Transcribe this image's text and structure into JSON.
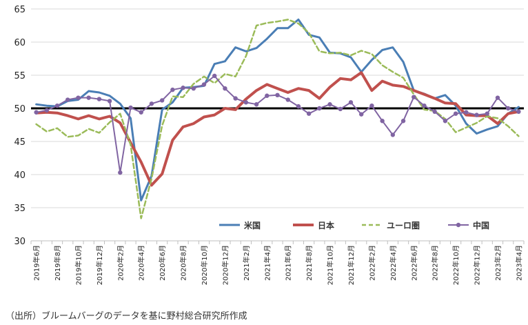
{
  "chart_data": {
    "type": "line",
    "title": "",
    "xlabel": "",
    "ylabel": "",
    "ylim": [
      30,
      65
    ],
    "yticks": [
      30,
      35,
      40,
      45,
      50,
      55,
      60,
      65
    ],
    "reference_line": 50,
    "grid": "horizontal",
    "legend_position": "bottom-inside",
    "x": [
      "2019年6月",
      "2019年7月",
      "2019年8月",
      "2019年9月",
      "2019年10月",
      "2019年11月",
      "2019年12月",
      "2020年1月",
      "2020年2月",
      "2020年3月",
      "2020年4月",
      "2020年5月",
      "2020年6月",
      "2020年7月",
      "2020年8月",
      "2020年9月",
      "2020年10月",
      "2020年11月",
      "2020年12月",
      "2021年1月",
      "2021年2月",
      "2021年3月",
      "2021年4月",
      "2021年5月",
      "2021年6月",
      "2021年7月",
      "2021年8月",
      "2021年9月",
      "2021年10月",
      "2021年11月",
      "2021年12月",
      "2022年1月",
      "2022年2月",
      "2022年3月",
      "2022年4月",
      "2022年5月",
      "2022年6月",
      "2022年7月",
      "2022年8月",
      "2022年9月",
      "2022年10月",
      "2022年11月",
      "2022年12月",
      "2023年1月",
      "2023年2月",
      "2023年3月",
      "2023年4月"
    ],
    "xtick_labels": [
      "2019年6月",
      "2019年8月",
      "2019年10月",
      "2019年12月",
      "2020年2月",
      "2020年4月",
      "2020年6月",
      "2020年8月",
      "2020年10月",
      "2020年12月",
      "2021年2月",
      "2021年4月",
      "2021年6月",
      "2021年8月",
      "2021年10月",
      "2021年12月",
      "2022年2月",
      "2022年4月",
      "2022年6月",
      "2022年8月",
      "2022年10月",
      "2022年12月",
      "2023年2月",
      "2023年4月"
    ],
    "series": [
      {
        "name": "米国",
        "color": "#4a7eb5",
        "style": "solid",
        "width": 3,
        "marker": "none",
        "values": [
          50.6,
          50.4,
          50.3,
          51.1,
          51.3,
          52.6,
          52.4,
          51.9,
          50.7,
          48.5,
          36.1,
          39.8,
          49.8,
          50.9,
          53.1,
          53.2,
          53.4,
          56.7,
          57.1,
          59.2,
          58.6,
          59.1,
          60.5,
          62.1,
          62.1,
          63.4,
          61.1,
          60.7,
          58.4,
          58.3,
          57.7,
          55.5,
          57.3,
          58.8,
          59.2,
          57.0,
          52.7,
          52.2,
          51.5,
          52.0,
          50.4,
          47.7,
          46.2,
          46.8,
          47.3,
          49.2,
          50.2
        ]
      },
      {
        "name": "日本",
        "color": "#c0504d",
        "style": "solid",
        "width": 4,
        "marker": "none",
        "values": [
          49.3,
          49.4,
          49.3,
          48.9,
          48.4,
          48.9,
          48.4,
          48.8,
          47.8,
          44.8,
          41.9,
          38.4,
          40.1,
          45.2,
          47.2,
          47.7,
          48.7,
          49.0,
          50.0,
          49.8,
          51.4,
          52.7,
          53.6,
          53.0,
          52.4,
          53.0,
          52.7,
          51.5,
          53.2,
          54.5,
          54.3,
          55.4,
          52.7,
          54.1,
          53.5,
          53.3,
          52.7,
          52.1,
          51.5,
          50.8,
          50.7,
          49.0,
          48.9,
          48.9,
          47.7,
          49.2,
          49.5
        ]
      },
      {
        "name": "ユーロ圏",
        "color": "#9bbb59",
        "style": "dashed",
        "width": 2.5,
        "marker": "none",
        "values": [
          47.6,
          46.5,
          47.0,
          45.7,
          45.9,
          46.9,
          46.3,
          47.9,
          49.2,
          44.5,
          33.4,
          39.4,
          47.4,
          51.8,
          51.7,
          53.7,
          54.8,
          53.8,
          55.2,
          54.8,
          57.9,
          62.5,
          62.9,
          63.1,
          63.4,
          62.8,
          61.4,
          58.6,
          58.3,
          58.4,
          58.0,
          58.7,
          58.2,
          56.5,
          55.5,
          54.6,
          52.1,
          49.8,
          49.6,
          48.4,
          46.4,
          47.1,
          47.8,
          48.8,
          48.5,
          47.3,
          45.8
        ]
      },
      {
        "name": "中国",
        "color": "#8064a2",
        "style": "solid",
        "width": 2,
        "marker": "circle",
        "values": [
          49.4,
          49.7,
          50.4,
          51.3,
          51.6,
          51.6,
          51.4,
          51.1,
          40.3,
          50.1,
          49.4,
          50.7,
          51.2,
          52.8,
          53.1,
          53.0,
          53.6,
          54.9,
          53.0,
          51.5,
          50.9,
          50.6,
          51.9,
          52.0,
          51.3,
          50.3,
          49.2,
          50.0,
          50.6,
          49.9,
          50.9,
          49.1,
          50.4,
          48.1,
          46.0,
          48.1,
          51.7,
          50.4,
          49.5,
          48.1,
          49.2,
          49.4,
          49.0,
          49.2,
          51.6,
          50.0,
          49.5
        ]
      }
    ]
  },
  "source_note": "（出所）ブルームバーグのデータを基に野村総合研究所作成"
}
